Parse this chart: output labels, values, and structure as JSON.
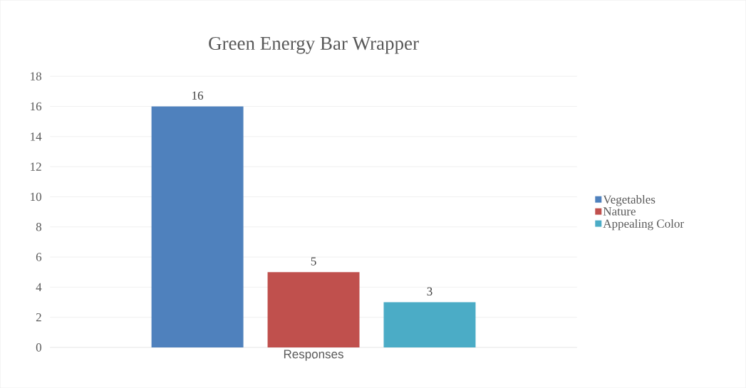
{
  "chart_data": {
    "type": "bar",
    "title": "Green Energy Bar Wrapper",
    "categories": [
      "Responses"
    ],
    "series": [
      {
        "name": "Vegetables",
        "color": "#4f81bd",
        "values": [
          16
        ]
      },
      {
        "name": "Nature",
        "color": "#c0504d",
        "values": [
          5
        ]
      },
      {
        "name": "Appealing Color",
        "color": "#4bacc6",
        "values": [
          3
        ]
      }
    ],
    "ylim": [
      0,
      18
    ],
    "yticks": [
      0,
      2,
      4,
      6,
      8,
      10,
      12,
      14,
      16,
      18
    ],
    "grid": "y",
    "legend": "right",
    "data_labels": true
  }
}
